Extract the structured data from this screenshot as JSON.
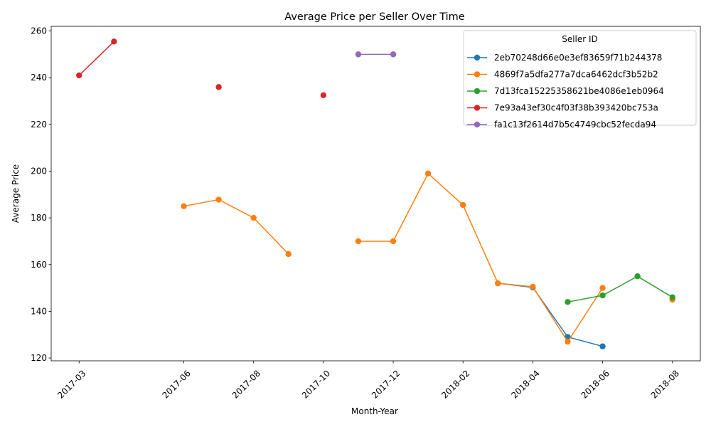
{
  "chart_data": {
    "type": "line",
    "title": "Average Price per Seller Over Time",
    "xlabel": "Month-Year",
    "ylabel": "Average Price",
    "x_months": [
      "2017-03",
      "2017-04",
      "2017-05",
      "2017-06",
      "2017-07",
      "2017-08",
      "2017-09",
      "2017-10",
      "2017-11",
      "2017-12",
      "2018-01",
      "2018-02",
      "2018-03",
      "2018-04",
      "2018-05",
      "2018-06",
      "2018-07",
      "2018-08"
    ],
    "x_ticks": [
      "2017-03",
      "2017-06",
      "2017-08",
      "2017-10",
      "2017-12",
      "2018-02",
      "2018-04",
      "2018-06",
      "2018-08"
    ],
    "x_lim": [
      -0.8,
      17.8
    ],
    "y_ticks": [
      120,
      140,
      160,
      180,
      200,
      220,
      240,
      260
    ],
    "ylim": [
      118.8,
      262
    ],
    "legend_title": "Seller ID",
    "legend_position": "top-right",
    "series": [
      {
        "name": "2eb70248d66e0e3ef83659f71b244378",
        "color": "#1f77b4",
        "values": [
          null,
          null,
          null,
          null,
          null,
          null,
          null,
          null,
          null,
          null,
          null,
          null,
          152,
          150.2,
          129,
          125,
          null,
          null
        ]
      },
      {
        "name": "4869f7a5dfa277a7dca6462dcf3b52b2",
        "color": "#ff7f0e",
        "values": [
          null,
          null,
          null,
          185,
          187.8,
          180,
          164.5,
          null,
          170,
          170,
          199,
          185.5,
          152,
          150.5,
          127,
          150,
          null,
          145
        ]
      },
      {
        "name": "7d13fca15225358621be4086e1eb0964",
        "color": "#2ca02c",
        "values": [
          null,
          null,
          null,
          null,
          null,
          null,
          null,
          null,
          null,
          null,
          null,
          null,
          null,
          null,
          144,
          146.8,
          155,
          146
        ]
      },
      {
        "name": "7e93a43ef30c4f03f38b393420bc753a",
        "color": "#d62728",
        "values": [
          241,
          255.5,
          null,
          null,
          236,
          null,
          null,
          232.5,
          null,
          null,
          null,
          null,
          null,
          null,
          null,
          null,
          null,
          null
        ]
      },
      {
        "name": "fa1c13f2614d7b5c4749cbc52fecda94",
        "color": "#9467bd",
        "values": [
          null,
          null,
          null,
          null,
          null,
          null,
          null,
          null,
          250,
          250,
          null,
          null,
          null,
          null,
          null,
          null,
          null,
          null
        ]
      }
    ]
  }
}
